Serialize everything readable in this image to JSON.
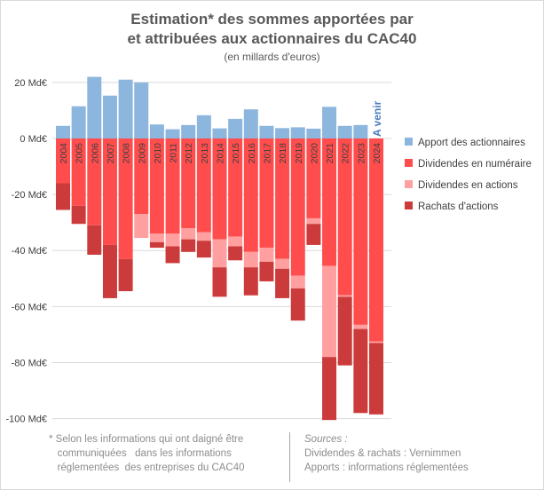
{
  "title_line1": "Estimation* des sommes apportées par",
  "title_line2": "et attribuées aux actionnaires du CAC40",
  "subtitle": "(en millards d'euros)",
  "colors": {
    "apport": "#8cb6de",
    "numeraire": "#ff4d4d",
    "actions": "#ff9f9f",
    "rachats": "#cc3b3b",
    "grid": "#d9d9d9",
    "axis_text": "#404040",
    "a_venir": "#4a7ebb"
  },
  "legend": [
    {
      "key": "apport",
      "label": "Apport des actionnaires"
    },
    {
      "key": "numeraire",
      "label": "Dividendes en numéraire"
    },
    {
      "key": "actions",
      "label": "Dividendes en actions"
    },
    {
      "key": "rachats",
      "label": "Rachats d'actions"
    }
  ],
  "annotation": "A venir",
  "footnote": {
    "lines": [
      "* Selon les informations qui ont daigné être",
      "   communiquées   dans les informations",
      "   réglementées  des entreprises du CAC40"
    ]
  },
  "sources": {
    "title": "Sources :",
    "lines": [
      "Dividendes & rachats : Vernimmen",
      "Apports : informations réglementées"
    ]
  },
  "chart_data": {
    "type": "bar",
    "stacked": true,
    "categories": [
      "2004",
      "2005",
      "2006",
      "2007",
      "2008",
      "2009",
      "2010",
      "2011",
      "2012",
      "2013",
      "2014",
      "2015",
      "2016",
      "2017",
      "2018",
      "2019",
      "2020",
      "2021",
      "2022",
      "2023",
      "2024"
    ],
    "series": [
      {
        "name": "Apport des actionnaires",
        "key": "apport",
        "values": [
          4.5,
          11.5,
          22,
          15.3,
          21,
          20,
          5,
          3.3,
          4.8,
          8.3,
          3.6,
          7,
          10.4,
          4.5,
          3.7,
          4,
          3.5,
          11.3,
          4.5,
          4.8,
          0
        ]
      },
      {
        "name": "Dividendes en numéraire",
        "key": "numeraire",
        "values": [
          -16,
          -24,
          -31,
          -38,
          -43,
          -27,
          -34,
          -34,
          -32,
          -33.5,
          -36,
          -35,
          -40.5,
          -39,
          -43,
          -49,
          -28.5,
          -45.5,
          -56,
          -66.5,
          -72.5
        ]
      },
      {
        "name": "Dividendes en actions",
        "key": "actions",
        "values": [
          0,
          0,
          0,
          0,
          0,
          -8.5,
          -3,
          -4.5,
          -4,
          -3,
          -10,
          -3.5,
          -5.5,
          -5,
          -3.5,
          -4.5,
          -2,
          -32.5,
          -0.5,
          -1.5,
          -0.5
        ]
      },
      {
        "name": "Rachats d'actions",
        "key": "rachats",
        "values": [
          -9.5,
          -6.5,
          -10.5,
          -19,
          -11.5,
          0,
          -2,
          -6,
          -4.5,
          -6,
          -10.5,
          -5,
          -10,
          -7,
          -10.5,
          -11.5,
          -7.5,
          -22.5,
          -24.5,
          -30,
          -25.5
        ]
      }
    ],
    "ylim": [
      -100,
      25
    ],
    "yticks": [
      20,
      0,
      -20,
      -40,
      -60,
      -80,
      -100
    ],
    "ytick_labels": [
      "20 Md€",
      "0 Md€",
      "-20 Md€",
      "-40 Md€",
      "-60 Md€",
      "-80 Md€",
      "-100 Md€"
    ],
    "grid": true,
    "legend_position": "right"
  }
}
